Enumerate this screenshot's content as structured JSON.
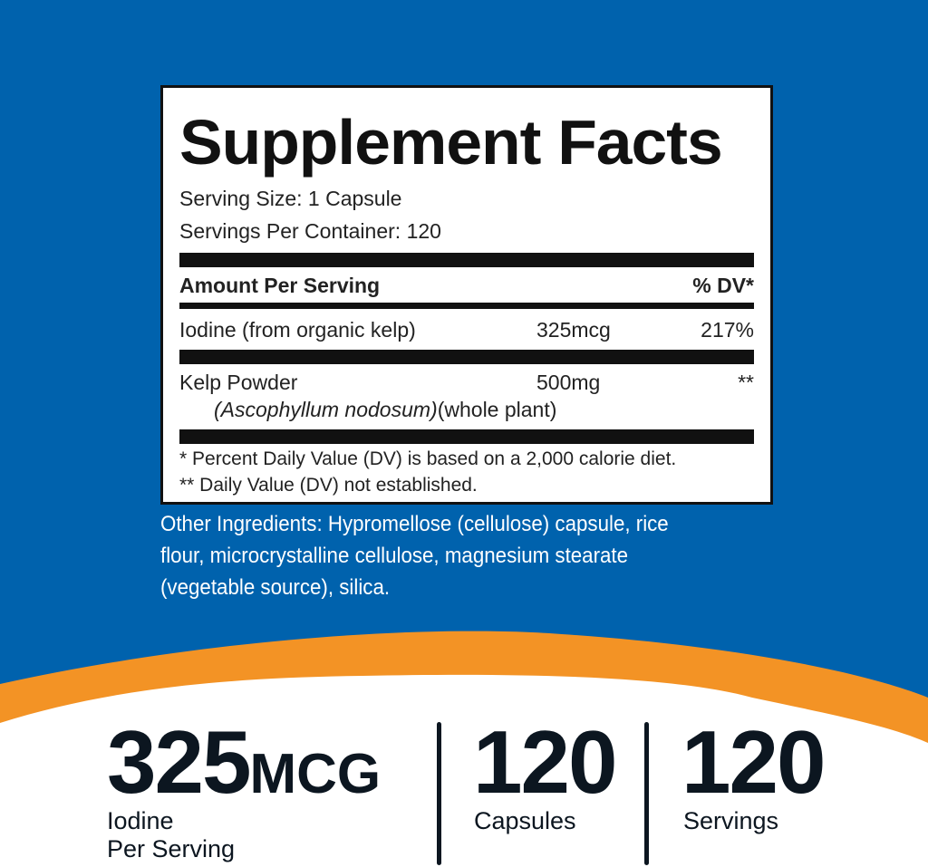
{
  "colors": {
    "blue": "#0062ad",
    "orange": "#f39325",
    "ink": "#0c1620"
  },
  "facts": {
    "title": "Supplement Facts",
    "serving_size": "Serving Size: 1 Capsule",
    "servings_per_container": "Servings Per Container: 120",
    "header": {
      "amount": "Amount Per Serving",
      "dv": "% DV*"
    },
    "rows": [
      {
        "name": "Iodine (from organic kelp)",
        "amount": "325mcg",
        "dv": "217%"
      },
      {
        "name": "Kelp Powder",
        "sub": "(Ascophyllum nodosum)",
        "sub2": "(whole plant)",
        "amount": "500mg",
        "dv": "**"
      }
    ],
    "footnote1": "* Percent Daily Value (DV) is based on a 2,000 calorie diet.",
    "footnote2": "** Daily Value (DV) not established."
  },
  "other_ingredients": "Other Ingredients: Hypromellose (cellulose) capsule, rice flour, microcrystalline cellulose, magnesium stearate (vegetable source), silica.",
  "stats": [
    {
      "value": "325",
      "unit": "MCG",
      "label1": "Iodine",
      "label2": "Per Serving"
    },
    {
      "value": "120",
      "label1": "Capsules"
    },
    {
      "value": "120",
      "label1": "Servings"
    }
  ]
}
